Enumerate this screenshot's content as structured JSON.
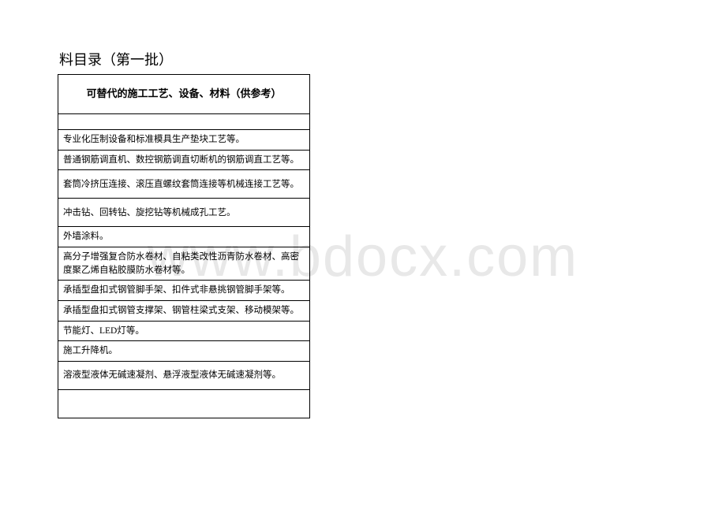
{
  "watermark": "www.bdocx.com",
  "title": "料目录（第一批）",
  "header": "可替代的施工工艺、设备、材料（供参考）",
  "rows": [
    {
      "text": "",
      "cls": "empty-short"
    },
    {
      "text": "专业化压制设备和标准模具生产垫块工艺等。",
      "cls": ""
    },
    {
      "text": "普通钢筋调直机、数控钢筋调直切断机的钢筋调直工艺等。",
      "cls": ""
    },
    {
      "text": "套筒冷挤压连接、滚压直螺纹套筒连接等机械连接工艺等。",
      "cls": "empty-tall"
    },
    {
      "text": "冲击钻、回转钻、旋挖钻等机械成孔工艺。",
      "cls": "empty-tall"
    },
    {
      "text": "外墙涂料。",
      "cls": "row-1line"
    },
    {
      "text": "高分子增强复合防水卷材、自粘类改性沥青防水卷材、高密度聚乙烯自粘胶膜防水卷材等。",
      "cls": ""
    },
    {
      "text": "承插型盘扣式钢管脚手架、扣件式非悬挑钢管脚手架等。",
      "cls": ""
    },
    {
      "text": "承插型盘扣式钢管支撑架、钢管柱梁式支架、移动模架等。",
      "cls": ""
    },
    {
      "text": "节能灯、LED灯等。",
      "cls": "row-1line"
    },
    {
      "text": "施工升降机。",
      "cls": "row-1line"
    },
    {
      "text": "溶液型液体无碱速凝剂、悬浮液型液体无碱速凝剂等。",
      "cls": "empty-tall"
    },
    {
      "text": "",
      "cls": "empty-tall"
    }
  ]
}
